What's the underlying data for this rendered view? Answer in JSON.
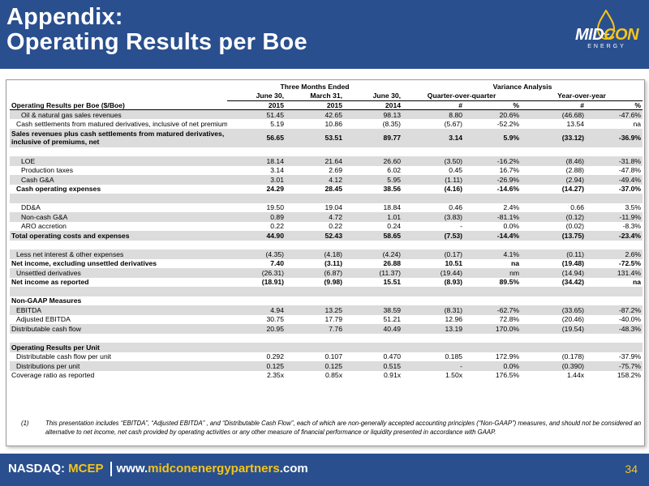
{
  "header": {
    "title_line1": "Appendix:",
    "title_line2": "Operating Results per Boe",
    "bg_color": "#2a4f8f"
  },
  "logo": {
    "text_main": "MID",
    "text_accent": "CON",
    "subtext": "ENERGY"
  },
  "table": {
    "group_three_months": "Three Months Ended",
    "group_variance": "Variance Analysis",
    "sub_qoq": "Quarter-over-quarter",
    "sub_yoy": "Year-over-year",
    "col_top": [
      "June 30,",
      "March 31,",
      "June 30,"
    ],
    "col_bottom": [
      "2015",
      "2015",
      "2014",
      "#",
      "%",
      "#",
      "%"
    ],
    "row_label_header": "Operating Results per Boe ($/Boe)",
    "rows": [
      {
        "label": "Oil & natural gas sales revenues",
        "v": [
          "51.45",
          "42.65",
          "98.13",
          "8.80",
          "20.6%",
          "(46.68)",
          "-47.6%"
        ]
      },
      {
        "label": "Cash settlements from matured derivatives, inclusive of net premiums",
        "v": [
          "5.19",
          "10.86",
          "(8.35)",
          "(5.67)",
          "-52.2%",
          "13.54",
          "na"
        ]
      },
      {
        "label": "Sales revenues plus cash settlements from matured derivatives, inclusive of premiums, net",
        "v": [
          "56.65",
          "53.51",
          "89.77",
          "3.14",
          "5.9%",
          "(33.12)",
          "-36.9%"
        ]
      },
      {
        "label": "LOE",
        "v": [
          "18.14",
          "21.64",
          "26.60",
          "(3.50)",
          "-16.2%",
          "(8.46)",
          "-31.8%"
        ]
      },
      {
        "label": "Production taxes",
        "v": [
          "3.14",
          "2.69",
          "6.02",
          "0.45",
          "16.7%",
          "(2.88)",
          "-47.8%"
        ]
      },
      {
        "label": "Cash G&A",
        "v": [
          "3.01",
          "4.12",
          "5.95",
          "(1.11)",
          "-26.9%",
          "(2.94)",
          "-49.4%"
        ]
      },
      {
        "label": "Cash operating expenses",
        "v": [
          "24.29",
          "28.45",
          "38.56",
          "(4.16)",
          "-14.6%",
          "(14.27)",
          "-37.0%"
        ]
      },
      {
        "label": "DD&A",
        "v": [
          "19.50",
          "19.04",
          "18.84",
          "0.46",
          "2.4%",
          "0.66",
          "3.5%"
        ]
      },
      {
        "label": "Non-cash G&A",
        "v": [
          "0.89",
          "4.72",
          "1.01",
          "(3.83)",
          "-81.1%",
          "(0.12)",
          "-11.9%"
        ]
      },
      {
        "label": "ARO accretion",
        "v": [
          "0.22",
          "0.22",
          "0.24",
          "-",
          "0.0%",
          "(0.02)",
          "-8.3%"
        ]
      },
      {
        "label": "Total operating costs and expenses",
        "v": [
          "44.90",
          "52.43",
          "58.65",
          "(7.53)",
          "-14.4%",
          "(13.75)",
          "-23.4%"
        ]
      },
      {
        "label": "Less net interest & other expenses",
        "v": [
          "(4.35)",
          "(4.18)",
          "(4.24)",
          "(0.17)",
          "4.1%",
          "(0.11)",
          "2.6%"
        ]
      },
      {
        "label": "Net income, excluding unsettled derivatives",
        "v": [
          "7.40",
          "(3.11)",
          "26.88",
          "10.51",
          "na",
          "(19.48)",
          "-72.5%"
        ]
      },
      {
        "label": "Unsettled derivatives",
        "v": [
          "(26.31)",
          "(6.87)",
          "(11.37)",
          "(19.44)",
          "nm",
          "(14.94)",
          "131.4%"
        ]
      },
      {
        "label": "Net income as reported",
        "v": [
          "(18.91)",
          "(9.98)",
          "15.51",
          "(8.93)",
          "89.5%",
          "(34.42)",
          "na"
        ]
      },
      {
        "label": "Non-GAAP Measures",
        "v": []
      },
      {
        "label": "EBITDA",
        "v": [
          "4.94",
          "13.25",
          "38.59",
          "(8.31)",
          "-62.7%",
          "(33.65)",
          "-87.2%"
        ]
      },
      {
        "label": "Adjusted EBITDA",
        "v": [
          "30.75",
          "17.79",
          "51.21",
          "12.96",
          "72.8%",
          "(20.46)",
          "-40.0%"
        ]
      },
      {
        "label": "Distributable cash flow",
        "v": [
          "20.95",
          "7.76",
          "40.49",
          "13.19",
          "170.0%",
          "(19.54)",
          "-48.3%"
        ]
      },
      {
        "label": "Operating Results per Unit",
        "v": []
      },
      {
        "label": "Distributable cash flow per unit",
        "v": [
          "0.292",
          "0.107",
          "0.470",
          "0.185",
          "172.9%",
          "(0.178)",
          "-37.9%"
        ]
      },
      {
        "label": "Distributions per unit",
        "v": [
          "0.125",
          "0.125",
          "0.515",
          "-",
          "0.0%",
          "(0.390)",
          "-75.7%"
        ]
      },
      {
        "label": "Coverage ratio as reported",
        "v": [
          "2.35x",
          "0.85x",
          "0.91x",
          "1.50x",
          "176.5%",
          "1.44x",
          "158.2%"
        ]
      }
    ]
  },
  "footnote": {
    "mark": "(1)",
    "text": "This presentation includes “EBITDA”, “Adjusted EBITDA” , and “Distributable Cash Flow”, each of which are non-generally accepted accounting principles (“Non-GAAP”) measures, and should not be considered an alternative to net income, net cash provided by operating activities or any other measure of financial performance or liquidity presented in accordance with GAAP."
  },
  "footer": {
    "nasdaq_label": "NASDAQ: ",
    "ticker": "MCEP",
    "web_prefix": "www.",
    "web_domain": "midconenergypartners",
    "web_suffix": ".com",
    "page_number": "34"
  }
}
